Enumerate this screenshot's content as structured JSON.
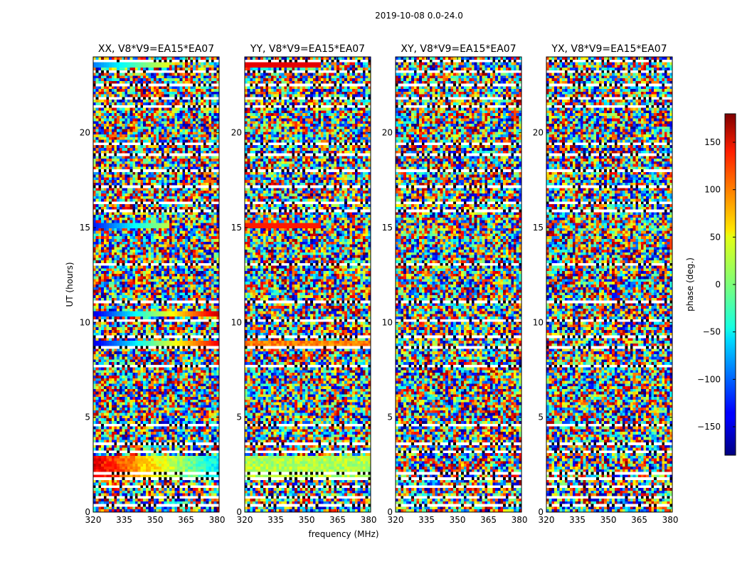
{
  "suptitle": "2019-10-08 0.0-24.0",
  "xlabel": "frequency (MHz)",
  "ylabel": "UT (hours)",
  "colorbar_label": "phase (deg.)",
  "chart_data": {
    "type": "heatmap",
    "title": "2019-10-08 0.0-24.0",
    "xlabel": "frequency (MHz)",
    "ylabel": "UT (hours)",
    "xlim": [
      320,
      381
    ],
    "ylim": [
      0,
      24
    ],
    "x_ticks": [
      "320",
      "335",
      "350",
      "365",
      "380"
    ],
    "y_ticks": [
      "0",
      "5",
      "10",
      "15",
      "20"
    ],
    "colormap": "jet",
    "colorbar": {
      "label": "phase (deg.)",
      "range": [
        -180,
        180
      ],
      "ticks": [
        "150",
        "100",
        "50",
        "0",
        "−50",
        "−100",
        "−150"
      ]
    },
    "panels": [
      {
        "title": "XX, V8*V9=EA15*EA07",
        "ylabel": "UT (hours)"
      },
      {
        "title": "YY, V8*V9=EA15*EA07"
      },
      {
        "title": "XY, V8*V9=EA15*EA07"
      },
      {
        "title": "YX, V8*V9=EA15*EA07"
      }
    ],
    "flagged_time_ranges_hours": [
      [
        0.3,
        0.4
      ],
      [
        0.7,
        0.8
      ],
      [
        1.3,
        1.4
      ],
      [
        1.7,
        1.8
      ],
      [
        2.0,
        2.1
      ],
      [
        3.1,
        3.2
      ],
      [
        3.6,
        3.7
      ],
      [
        4.5,
        4.6
      ],
      [
        6.6,
        6.7
      ],
      [
        7.6,
        7.7
      ],
      [
        8.6,
        8.7
      ],
      [
        9.2,
        9.3
      ],
      [
        10.0,
        10.1
      ],
      [
        11.0,
        11.1
      ],
      [
        11.8,
        11.9
      ],
      [
        12.5,
        12.6
      ],
      [
        13.0,
        13.1
      ],
      [
        14.2,
        14.3
      ],
      [
        15.8,
        15.9
      ],
      [
        16.3,
        16.4
      ],
      [
        17.1,
        17.2
      ],
      [
        17.9,
        18.0
      ],
      [
        18.8,
        18.9
      ],
      [
        19.4,
        19.5
      ],
      [
        21.3,
        21.4
      ],
      [
        21.8,
        21.9
      ],
      [
        22.5,
        22.6
      ],
      [
        23.2,
        23.3
      ],
      [
        23.7,
        23.8
      ]
    ]
  }
}
